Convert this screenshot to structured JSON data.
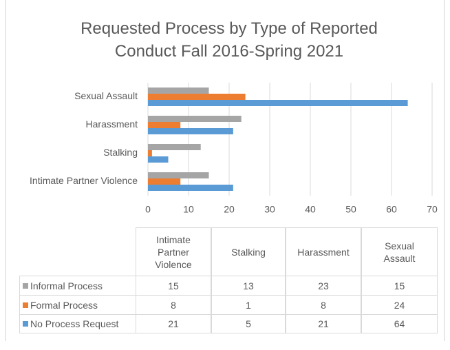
{
  "chart_data": {
    "type": "bar",
    "orientation": "horizontal",
    "title": "Requested Process by Type of Reported Conduct Fall 2016-Spring 2021",
    "categories": [
      "Intimate Partner Violence",
      "Stalking",
      "Harassment",
      "Sexual Assault"
    ],
    "series": [
      {
        "name": "Informal Process",
        "color": "#a5a5a5",
        "values": [
          15,
          13,
          23,
          15
        ]
      },
      {
        "name": "Formal Process",
        "color": "#ed7d31",
        "values": [
          8,
          1,
          8,
          24
        ]
      },
      {
        "name": "No Process Request",
        "color": "#5b9bd5",
        "values": [
          21,
          5,
          21,
          64
        ]
      }
    ],
    "xlim": [
      0,
      70
    ],
    "xticks": [
      0,
      10,
      20,
      30,
      40,
      50,
      60,
      70
    ],
    "grid": true,
    "data_table": true
  }
}
